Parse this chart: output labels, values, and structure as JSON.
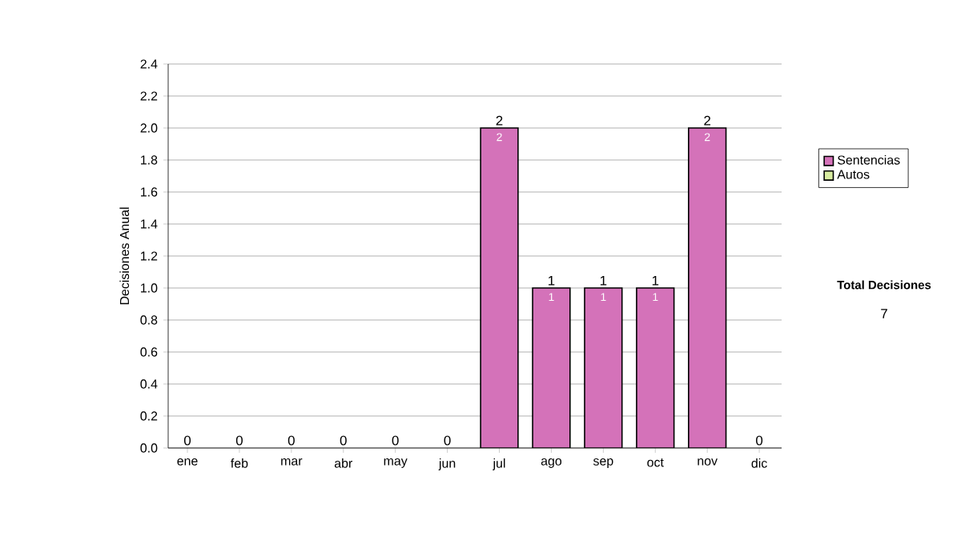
{
  "chart_data": {
    "type": "bar",
    "stacked": true,
    "ylabel": "Decisiones Anual",
    "categories": [
      "ene",
      "feb",
      "mar",
      "abr",
      "may",
      "jun",
      "jul",
      "ago",
      "sep",
      "oct",
      "nov",
      "dic"
    ],
    "series": [
      {
        "name": "Sentencias",
        "color": "#d472b9",
        "values": [
          0,
          0,
          0,
          0,
          0,
          0,
          2,
          1,
          1,
          1,
          2,
          0
        ],
        "value_labels": [
          null,
          null,
          null,
          null,
          null,
          null,
          "2",
          "1",
          "1",
          "1",
          "2",
          null
        ]
      },
      {
        "name": "Autos",
        "color": "#d8eca0",
        "values": [
          0,
          0,
          0,
          0,
          0,
          0,
          0,
          0,
          0,
          0,
          0,
          0
        ]
      }
    ],
    "totals": [
      "0",
      "0",
      "0",
      "0",
      "0",
      "0",
      "2",
      "1",
      "1",
      "1",
      "2",
      "0"
    ],
    "ylim": [
      0,
      2.4
    ],
    "yticks": [
      {
        "value": 0,
        "label": "0.0"
      },
      {
        "value": 0.2,
        "label": "0.2"
      },
      {
        "value": 0.4,
        "label": "0.4"
      },
      {
        "value": 0.6,
        "label": "0.6"
      },
      {
        "value": 0.8,
        "label": "0.8"
      },
      {
        "value": 1.0,
        "label": "1.0"
      },
      {
        "value": 1.2,
        "label": "1.2"
      },
      {
        "value": 1.4,
        "label": "1.4"
      },
      {
        "value": 1.6,
        "label": "1.6"
      },
      {
        "value": 1.8,
        "label": "1.8"
      },
      {
        "value": 2.0,
        "label": "2.0"
      },
      {
        "value": 2.2,
        "label": "2.2"
      },
      {
        "value": 2.4,
        "label": "2.4"
      }
    ],
    "grid": "y",
    "legend": "right",
    "annotations": [
      "Total Decisiones",
      "7"
    ]
  }
}
